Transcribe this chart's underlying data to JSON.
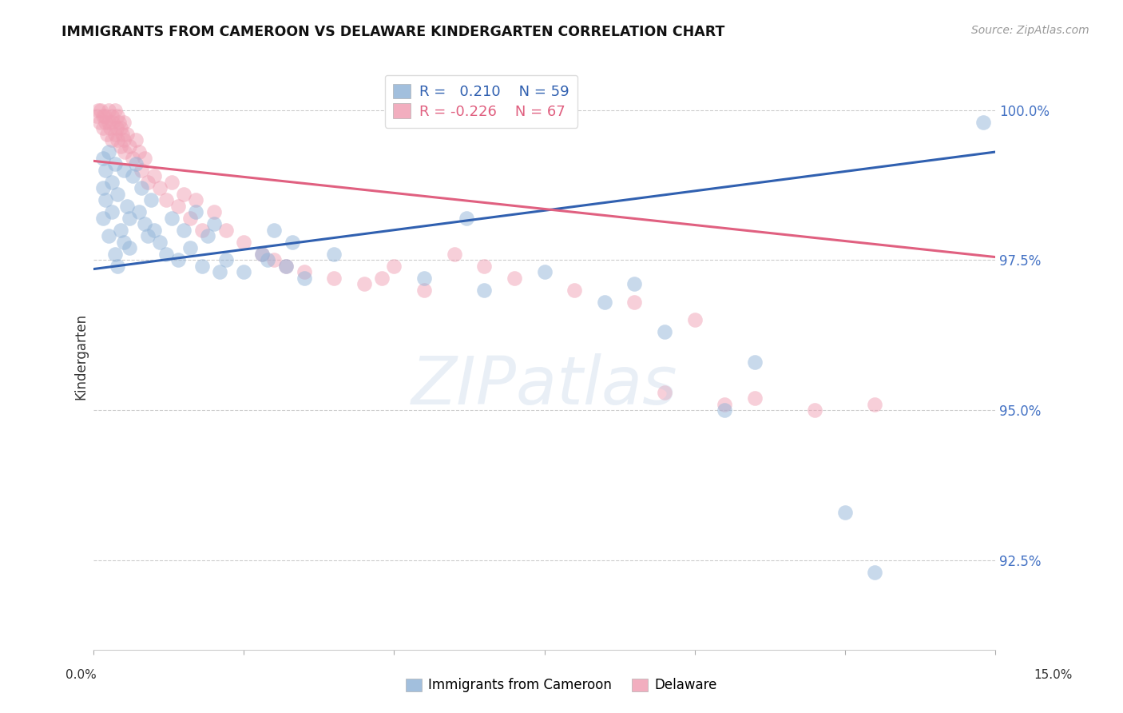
{
  "title": "IMMIGRANTS FROM CAMEROON VS DELAWARE KINDERGARTEN CORRELATION CHART",
  "source": "Source: ZipAtlas.com",
  "ylabel": "Kindergarten",
  "y_min": 91.0,
  "y_max": 100.8,
  "x_min": 0.0,
  "x_max": 15.0,
  "y_tick_vals": [
    92.5,
    95.0,
    97.5,
    100.0
  ],
  "legend_blue_r": "0.210",
  "legend_blue_n": "59",
  "legend_pink_r": "-0.226",
  "legend_pink_n": "67",
  "blue_color": "#92b4d8",
  "pink_color": "#f0a0b4",
  "blue_line_color": "#3060b0",
  "pink_line_color": "#e06080",
  "blue_line_x0": 0.0,
  "blue_line_y0": 97.35,
  "blue_line_x1": 15.0,
  "blue_line_y1": 99.3,
  "pink_line_x0": 0.0,
  "pink_line_y0": 99.15,
  "pink_line_x1": 15.0,
  "pink_line_y1": 97.55,
  "blue_points_x": [
    0.15,
    0.15,
    0.15,
    0.2,
    0.2,
    0.25,
    0.25,
    0.3,
    0.3,
    0.35,
    0.35,
    0.4,
    0.4,
    0.45,
    0.5,
    0.5,
    0.55,
    0.6,
    0.6,
    0.65,
    0.7,
    0.75,
    0.8,
    0.85,
    0.9,
    0.95,
    1.0,
    1.1,
    1.2,
    1.3,
    1.4,
    1.5,
    1.6,
    1.7,
    1.8,
    1.9,
    2.0,
    2.1,
    2.2,
    2.5,
    2.8,
    3.0,
    3.2,
    3.5,
    4.0,
    5.5,
    6.2,
    6.5,
    7.5,
    8.5,
    9.0,
    9.5,
    10.5,
    11.0,
    12.5,
    13.0,
    14.8,
    2.9,
    3.3
  ],
  "blue_points_y": [
    99.2,
    98.7,
    98.2,
    99.0,
    98.5,
    99.3,
    97.9,
    98.8,
    98.3,
    99.1,
    97.6,
    98.6,
    97.4,
    98.0,
    99.0,
    97.8,
    98.4,
    98.2,
    97.7,
    98.9,
    99.1,
    98.3,
    98.7,
    98.1,
    97.9,
    98.5,
    98.0,
    97.8,
    97.6,
    98.2,
    97.5,
    98.0,
    97.7,
    98.3,
    97.4,
    97.9,
    98.1,
    97.3,
    97.5,
    97.3,
    97.6,
    98.0,
    97.4,
    97.2,
    97.6,
    97.2,
    98.2,
    97.0,
    97.3,
    96.8,
    97.1,
    96.3,
    95.0,
    95.8,
    93.3,
    92.3,
    99.8,
    97.5,
    97.8
  ],
  "pink_points_x": [
    0.05,
    0.08,
    0.1,
    0.12,
    0.15,
    0.15,
    0.18,
    0.2,
    0.22,
    0.25,
    0.25,
    0.28,
    0.3,
    0.3,
    0.32,
    0.35,
    0.35,
    0.38,
    0.4,
    0.4,
    0.42,
    0.45,
    0.45,
    0.48,
    0.5,
    0.5,
    0.52,
    0.55,
    0.6,
    0.65,
    0.7,
    0.75,
    0.8,
    0.85,
    0.9,
    1.0,
    1.1,
    1.2,
    1.3,
    1.4,
    1.5,
    1.6,
    1.7,
    1.8,
    2.0,
    2.2,
    2.5,
    3.0,
    3.5,
    4.0,
    4.5,
    5.0,
    6.0,
    6.5,
    7.0,
    8.0,
    9.0,
    10.0,
    11.0,
    12.0,
    13.0,
    2.8,
    3.2,
    4.8,
    5.5,
    9.5,
    10.5
  ],
  "pink_points_y": [
    99.9,
    100.0,
    99.8,
    100.0,
    99.9,
    99.7,
    99.9,
    99.8,
    99.6,
    100.0,
    99.8,
    99.7,
    99.9,
    99.5,
    99.8,
    100.0,
    99.6,
    99.7,
    99.9,
    99.5,
    99.8,
    99.7,
    99.4,
    99.6,
    99.8,
    99.5,
    99.3,
    99.6,
    99.4,
    99.2,
    99.5,
    99.3,
    99.0,
    99.2,
    98.8,
    98.9,
    98.7,
    98.5,
    98.8,
    98.4,
    98.6,
    98.2,
    98.5,
    98.0,
    98.3,
    98.0,
    97.8,
    97.5,
    97.3,
    97.2,
    97.1,
    97.4,
    97.6,
    97.4,
    97.2,
    97.0,
    96.8,
    96.5,
    95.2,
    95.0,
    95.1,
    97.6,
    97.4,
    97.2,
    97.0,
    95.3,
    95.1
  ]
}
